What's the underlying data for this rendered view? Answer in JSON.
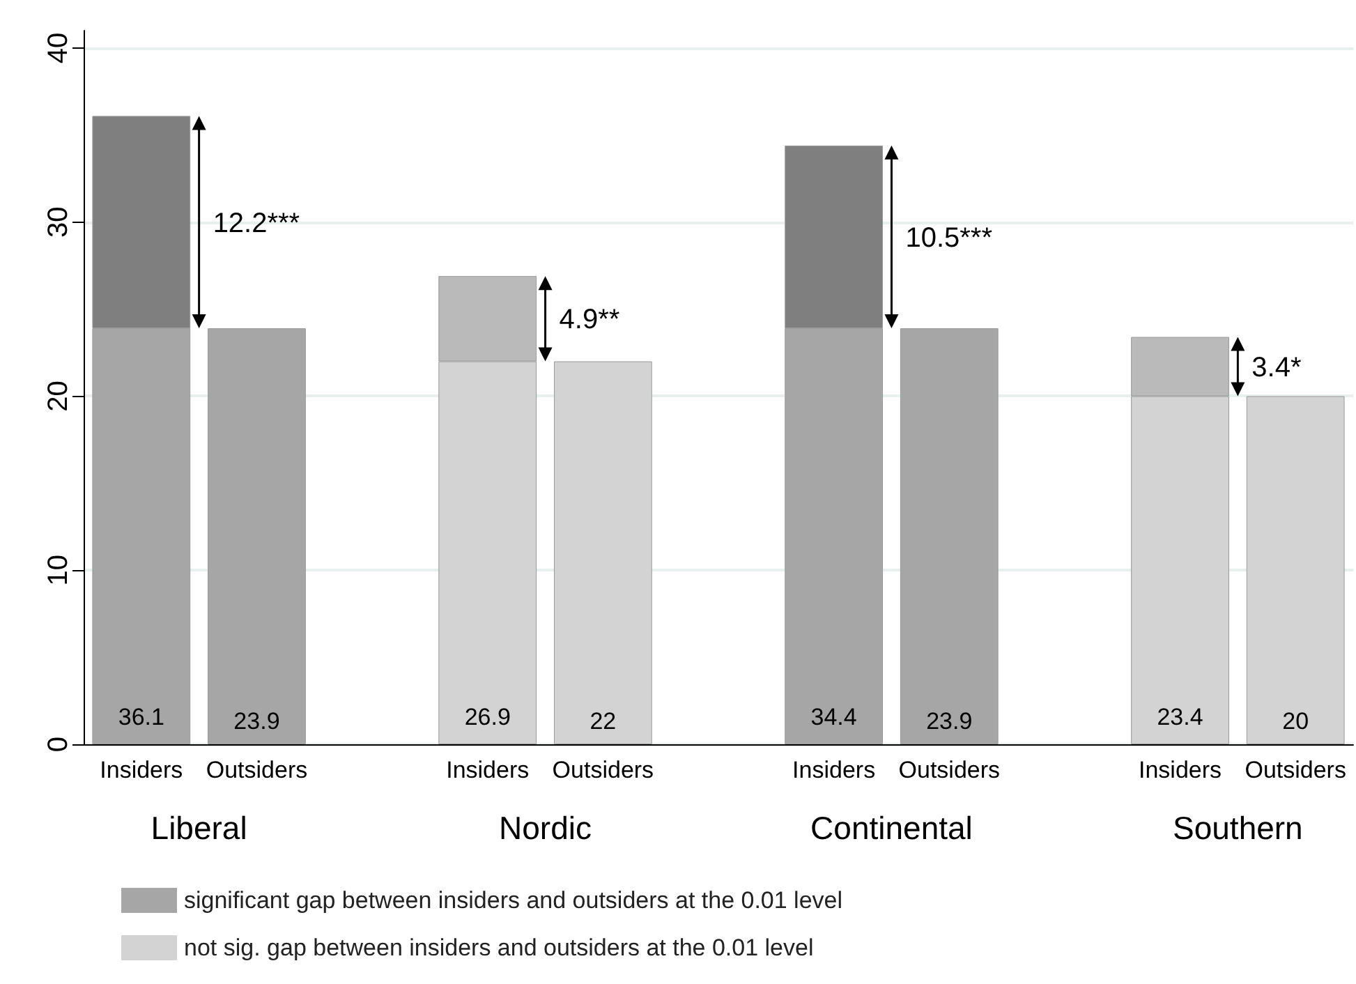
{
  "chart_data": {
    "type": "bar",
    "stacked": true,
    "categories": [
      "Insiders",
      "Outsiders",
      null,
      "Insiders",
      "Outsiders",
      null,
      "Insiders",
      "Outsiders",
      null,
      "Insiders",
      "Outsiders"
    ],
    "series": [
      {
        "name": "significant gap between insiders and outsiders at the 0.01 level",
        "color": "#a6a6a6",
        "values": [
          23.9,
          23.9,
          null,
          null,
          null,
          null,
          23.9,
          23.9,
          null,
          null,
          null
        ],
        "value_labels": [
          null,
          "23.9",
          null,
          null,
          null,
          null,
          null,
          "23.9",
          null,
          null,
          null
        ]
      },
      {
        "name": "not sig. gap between insiders and outsiders at the 0.01 level",
        "color": "#d3d3d3",
        "values": [
          null,
          null,
          null,
          22,
          22,
          null,
          null,
          null,
          null,
          20,
          20
        ],
        "value_labels": [
          null,
          null,
          null,
          null,
          "22",
          null,
          null,
          null,
          null,
          null,
          "20"
        ]
      },
      {
        "colors": [
          "#7f7f7f",
          null,
          null,
          "#bababa",
          null,
          null,
          "#7f7f7f",
          null,
          null,
          "#bababa",
          null
        ],
        "values": [
          12.2,
          null,
          null,
          4.9,
          null,
          null,
          10.5,
          null,
          null,
          3.4,
          null
        ]
      }
    ],
    "totals": [
      "36.1",
      null,
      null,
      "26.9",
      null,
      null,
      "34.4",
      null,
      null,
      "23.4",
      null
    ],
    "annotations": [
      "12.2***",
      "4.9**",
      "10.5***",
      "3.4*",
      "Liberal",
      "Nordic",
      "Continental",
      "Southern"
    ],
    "ylim": [
      0,
      41
    ],
    "yticks": [
      0,
      10,
      20,
      30,
      40
    ],
    "grid": "y",
    "legend": "bottom left"
  }
}
